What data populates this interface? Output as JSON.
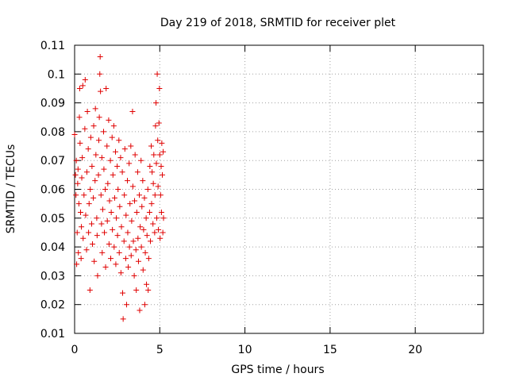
{
  "chart_data": {
    "type": "scatter",
    "title": "Day 219 of 2018, SRMTID for receiver plet",
    "xlabel": "GPS time / hours",
    "ylabel": "SRMTID / TECUs",
    "xlim": [
      0,
      24
    ],
    "ylim": [
      0.01,
      0.11
    ],
    "x_ticks": [
      0,
      5,
      10,
      15,
      20
    ],
    "x_tick_labels": [
      "0",
      "5",
      "10",
      "15",
      "20"
    ],
    "y_ticks": [
      0.01,
      0.02,
      0.03,
      0.04,
      0.05,
      0.06,
      0.07,
      0.08,
      0.09,
      0.1,
      0.11
    ],
    "y_tick_labels": [
      "0.01",
      "0.02",
      "0.03",
      "0.04",
      "0.05",
      "0.06",
      "0.07",
      "0.08",
      "0.09",
      "0.1",
      "0.11"
    ],
    "grid": true,
    "marker": "+",
    "color": "#e00000",
    "series": [
      {
        "name": "SRMTID",
        "points": [
          [
            0.0,
            0.079
          ],
          [
            0.05,
            0.065
          ],
          [
            0.08,
            0.058
          ],
          [
            0.1,
            0.07
          ],
          [
            0.12,
            0.034
          ],
          [
            0.15,
            0.045
          ],
          [
            0.18,
            0.062
          ],
          [
            0.2,
            0.067
          ],
          [
            0.22,
            0.038
          ],
          [
            0.25,
            0.055
          ],
          [
            0.28,
            0.085
          ],
          [
            0.3,
            0.095
          ],
          [
            0.32,
            0.076
          ],
          [
            0.35,
            0.052
          ],
          [
            0.38,
            0.036
          ],
          [
            0.4,
            0.047
          ],
          [
            0.42,
            0.064
          ],
          [
            0.45,
            0.071
          ],
          [
            0.48,
            0.096
          ],
          [
            0.5,
            0.043
          ],
          [
            0.55,
            0.058
          ],
          [
            0.6,
            0.081
          ],
          [
            0.62,
            0.098
          ],
          [
            0.65,
            0.051
          ],
          [
            0.7,
            0.039
          ],
          [
            0.72,
            0.066
          ],
          [
            0.75,
            0.087
          ],
          [
            0.8,
            0.074
          ],
          [
            0.82,
            0.045
          ],
          [
            0.85,
            0.055
          ],
          [
            0.9,
            0.025
          ],
          [
            0.92,
            0.06
          ],
          [
            0.95,
            0.078
          ],
          [
            1.0,
            0.048
          ],
          [
            1.02,
            0.068
          ],
          [
            1.05,
            0.041
          ],
          [
            1.1,
            0.057
          ],
          [
            1.12,
            0.082
          ],
          [
            1.15,
            0.035
          ],
          [
            1.2,
            0.063
          ],
          [
            1.22,
            0.088
          ],
          [
            1.25,
            0.072
          ],
          [
            1.3,
            0.05
          ],
          [
            1.32,
            0.044
          ],
          [
            1.35,
            0.03
          ],
          [
            1.4,
            0.065
          ],
          [
            1.42,
            0.077
          ],
          [
            1.45,
            0.085
          ],
          [
            1.48,
            0.1
          ],
          [
            1.5,
            0.106
          ],
          [
            1.52,
            0.094
          ],
          [
            1.55,
            0.058
          ],
          [
            1.58,
            0.048
          ],
          [
            1.6,
            0.071
          ],
          [
            1.62,
            0.038
          ],
          [
            1.65,
            0.053
          ],
          [
            1.7,
            0.08
          ],
          [
            1.72,
            0.067
          ],
          [
            1.75,
            0.045
          ],
          [
            1.8,
            0.06
          ],
          [
            1.82,
            0.033
          ],
          [
            1.85,
            0.095
          ],
          [
            1.9,
            0.075
          ],
          [
            1.92,
            0.049
          ],
          [
            1.95,
            0.062
          ],
          [
            2.0,
            0.084
          ],
          [
            2.02,
            0.041
          ],
          [
            2.05,
            0.056
          ],
          [
            2.1,
            0.07
          ],
          [
            2.12,
            0.036
          ],
          [
            2.15,
            0.052
          ],
          [
            2.2,
            0.078
          ],
          [
            2.22,
            0.046
          ],
          [
            2.25,
            0.065
          ],
          [
            2.3,
            0.082
          ],
          [
            2.32,
            0.04
          ],
          [
            2.35,
            0.057
          ],
          [
            2.4,
            0.073
          ],
          [
            2.42,
            0.034
          ],
          [
            2.45,
            0.05
          ],
          [
            2.5,
            0.068
          ],
          [
            2.52,
            0.044
          ],
          [
            2.55,
            0.06
          ],
          [
            2.6,
            0.077
          ],
          [
            2.62,
            0.038
          ],
          [
            2.65,
            0.054
          ],
          [
            2.7,
            0.071
          ],
          [
            2.72,
            0.031
          ],
          [
            2.75,
            0.047
          ],
          [
            2.8,
            0.066
          ],
          [
            2.82,
            0.024
          ],
          [
            2.85,
            0.015
          ],
          [
            2.9,
            0.042
          ],
          [
            2.92,
            0.058
          ],
          [
            2.95,
            0.074
          ],
          [
            3.0,
            0.036
          ],
          [
            3.02,
            0.051
          ],
          [
            3.05,
            0.02
          ],
          [
            3.1,
            0.063
          ],
          [
            3.12,
            0.045
          ],
          [
            3.15,
            0.033
          ],
          [
            3.2,
            0.069
          ],
          [
            3.22,
            0.04
          ],
          [
            3.25,
            0.055
          ],
          [
            3.3,
            0.075
          ],
          [
            3.32,
            0.037
          ],
          [
            3.35,
            0.049
          ],
          [
            3.4,
            0.087
          ],
          [
            3.42,
            0.061
          ],
          [
            3.45,
            0.042
          ],
          [
            3.5,
            0.03
          ],
          [
            3.52,
            0.056
          ],
          [
            3.55,
            0.072
          ],
          [
            3.6,
            0.039
          ],
          [
            3.62,
            0.025
          ],
          [
            3.65,
            0.052
          ],
          [
            3.7,
            0.066
          ],
          [
            3.72,
            0.043
          ],
          [
            3.75,
            0.035
          ],
          [
            3.8,
            0.058
          ],
          [
            3.82,
            0.018
          ],
          [
            3.85,
            0.047
          ],
          [
            3.9,
            0.07
          ],
          [
            3.92,
            0.04
          ],
          [
            3.95,
            0.054
          ],
          [
            4.0,
            0.063
          ],
          [
            4.02,
            0.032
          ],
          [
            4.05,
            0.046
          ],
          [
            4.1,
            0.057
          ],
          [
            4.12,
            0.02
          ],
          [
            4.15,
            0.038
          ],
          [
            4.2,
            0.05
          ],
          [
            4.22,
            0.027
          ],
          [
            4.25,
            0.044
          ],
          [
            4.3,
            0.06
          ],
          [
            4.32,
            0.025
          ],
          [
            4.35,
            0.036
          ],
          [
            4.4,
            0.052
          ],
          [
            4.42,
            0.068
          ],
          [
            4.45,
            0.042
          ],
          [
            4.5,
            0.075
          ],
          [
            4.52,
            0.055
          ],
          [
            4.55,
            0.066
          ],
          [
            4.6,
            0.048
          ],
          [
            4.62,
            0.062
          ],
          [
            4.65,
            0.072
          ],
          [
            4.7,
            0.045
          ],
          [
            4.72,
            0.058
          ],
          [
            4.75,
            0.082
          ],
          [
            4.78,
            0.09
          ],
          [
            4.8,
            0.069
          ],
          [
            4.82,
            0.05
          ],
          [
            4.85,
            0.1
          ],
          [
            4.88,
            0.077
          ],
          [
            4.9,
            0.061
          ],
          [
            4.92,
            0.046
          ],
          [
            4.95,
            0.083
          ],
          [
            4.98,
            0.095
          ],
          [
            5.0,
            0.072
          ],
          [
            5.02,
            0.043
          ],
          [
            5.05,
            0.058
          ],
          [
            5.08,
            0.068
          ],
          [
            5.1,
            0.052
          ],
          [
            5.12,
            0.076
          ],
          [
            5.15,
            0.065
          ],
          [
            5.18,
            0.045
          ],
          [
            5.2,
            0.073
          ],
          [
            5.22,
            0.05
          ]
        ]
      }
    ]
  }
}
